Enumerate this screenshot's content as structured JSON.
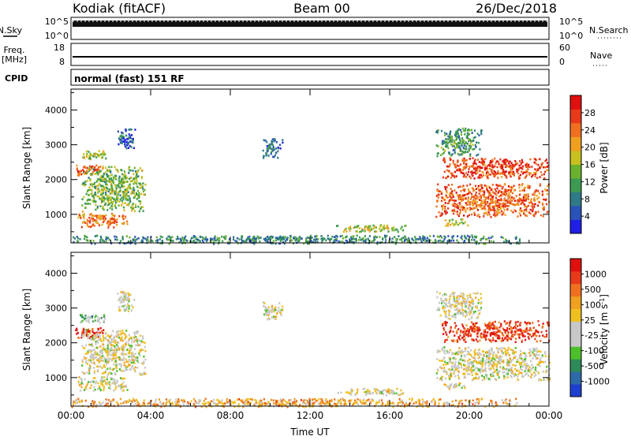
{
  "header": {
    "station": "Kodiak (fitACF)",
    "beam": "Beam 00",
    "date": "26/Dec/2018"
  },
  "top_panels": {
    "nsky_label": "N.Sky",
    "nsky_ticks": [
      "10^5",
      "10^0"
    ],
    "nsearch_label": "N.Search",
    "nsearch_ticks": [
      "10^5",
      "10^0"
    ],
    "freq_label": "Freq.",
    "freq_unit": "[MHz]",
    "freq_ticks": [
      "18",
      "8"
    ],
    "nave_label": "Nave",
    "nave_ticks": [
      "60",
      "0"
    ],
    "cpid_label": "CPID",
    "cpid_value": "normal (fast) 151 RF"
  },
  "chart_data": [
    {
      "type": "heatmap",
      "name": "power-panel",
      "ylabel": "Slant Range [km]",
      "xlabel": "",
      "ylim": [
        180,
        4600
      ],
      "yticks": [
        1000,
        2000,
        3000,
        4000
      ],
      "xlim": [
        0,
        24
      ],
      "xticks": [
        "00:00",
        "04:00",
        "08:00",
        "12:00",
        "16:00",
        "20:00",
        "00:00"
      ],
      "colorbar": {
        "label": "Power [dB]",
        "ticks": [
          "4",
          "8",
          "12",
          "16",
          "20",
          "24",
          "28"
        ],
        "colors": [
          "#1f1fe6",
          "#2a52b8",
          "#2f7a86",
          "#3c9a52",
          "#6ab22e",
          "#c8c020",
          "#f0a020",
          "#f07020",
          "#e83a1a",
          "#e01010"
        ]
      },
      "regions": [
        {
          "t0": 0.2,
          "t1": 1.6,
          "r0": 2150,
          "r1": 2450,
          "level": 0.8
        },
        {
          "t0": 0.3,
          "t1": 2.8,
          "r0": 650,
          "r1": 1050,
          "level": 0.72
        },
        {
          "t0": 0.5,
          "t1": 3.7,
          "r0": 1100,
          "r1": 2400,
          "level": 0.45
        },
        {
          "t0": 0.4,
          "t1": 1.8,
          "r0": 2600,
          "r1": 2850,
          "level": 0.5
        },
        {
          "t0": 2.3,
          "t1": 3.2,
          "r0": 2900,
          "r1": 3500,
          "level": 0.2
        },
        {
          "t0": 9.6,
          "t1": 10.6,
          "r0": 2650,
          "r1": 3200,
          "level": 0.22
        },
        {
          "t0": 13.3,
          "t1": 16.8,
          "r0": 520,
          "r1": 720,
          "level": 0.5
        },
        {
          "t0": 0.0,
          "t1": 22.5,
          "r0": 180,
          "r1": 420,
          "level": 0.3
        },
        {
          "t0": 18.6,
          "t1": 24.0,
          "r0": 2050,
          "r1": 2650,
          "level": 0.85
        },
        {
          "t0": 18.3,
          "t1": 24.0,
          "r0": 950,
          "r1": 1900,
          "level": 0.78
        },
        {
          "t0": 18.3,
          "t1": 20.6,
          "r0": 2700,
          "r1": 3500,
          "level": 0.35
        },
        {
          "t0": 18.6,
          "t1": 19.9,
          "r0": 700,
          "r1": 900,
          "level": 0.55
        }
      ]
    },
    {
      "type": "heatmap",
      "name": "velocity-panel",
      "ylabel": "Slant Range [km]",
      "xlabel": "Time UT",
      "ylim": [
        180,
        4600
      ],
      "yticks": [
        1000,
        2000,
        3000,
        4000
      ],
      "xlim": [
        0,
        24
      ],
      "xticks": [
        "00:00",
        "04:00",
        "08:00",
        "12:00",
        "16:00",
        "20:00",
        "00:00"
      ],
      "colorbar": {
        "label": "Velocity  [m s",
        "label_sup": "-1",
        "label_end": "]",
        "ticks": [
          "1000",
          "500",
          "100",
          "25",
          "-25",
          "-100",
          "-500",
          "-1000"
        ],
        "colors": [
          "#1f3fd0",
          "#2f6aa8",
          "#2f8a5a",
          "#4cc02a",
          "#c8c8c8",
          "#c8c8c8",
          "#f0c020",
          "#f0a020",
          "#f07020",
          "#e83a1a",
          "#e01010"
        ]
      },
      "regions": [
        {
          "t0": 0.2,
          "t1": 1.6,
          "r0": 2150,
          "r1": 2450,
          "level": 0.9
        },
        {
          "t0": 0.3,
          "t1": 2.8,
          "r0": 650,
          "r1": 1050,
          "level": 0.5
        },
        {
          "t0": 0.5,
          "t1": 3.7,
          "r0": 1100,
          "r1": 2400,
          "level": 0.5
        },
        {
          "t0": 0.4,
          "t1": 1.8,
          "r0": 2600,
          "r1": 2850,
          "level": 0.35
        },
        {
          "t0": 2.3,
          "t1": 3.2,
          "r0": 2900,
          "r1": 3500,
          "level": 0.5
        },
        {
          "t0": 9.6,
          "t1": 10.6,
          "r0": 2650,
          "r1": 3200,
          "level": 0.5
        },
        {
          "t0": 13.3,
          "t1": 16.8,
          "r0": 520,
          "r1": 720,
          "level": 0.5
        },
        {
          "t0": 0.0,
          "t1": 22.5,
          "r0": 180,
          "r1": 420,
          "level": 0.65
        },
        {
          "t0": 18.6,
          "t1": 24.0,
          "r0": 2050,
          "r1": 2650,
          "level": 0.88
        },
        {
          "t0": 18.3,
          "t1": 24.0,
          "r0": 950,
          "r1": 1900,
          "level": 0.5
        },
        {
          "t0": 18.3,
          "t1": 20.6,
          "r0": 2700,
          "r1": 3500,
          "level": 0.5
        },
        {
          "t0": 18.6,
          "t1": 19.9,
          "r0": 700,
          "r1": 900,
          "level": 0.5
        }
      ]
    }
  ]
}
